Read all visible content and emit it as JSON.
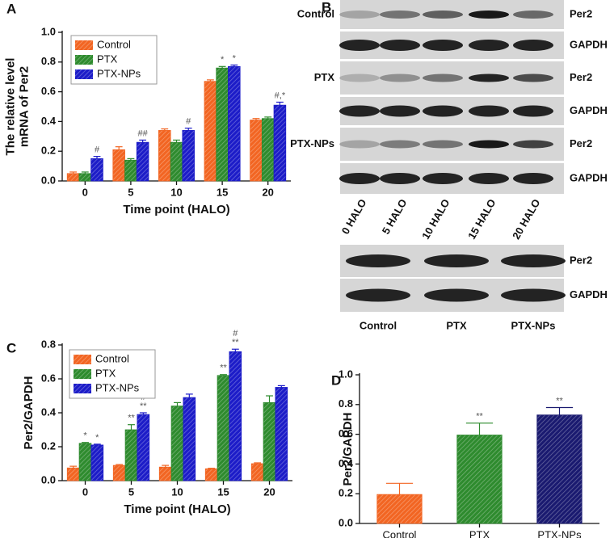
{
  "chart_data": [
    {
      "type": "bar",
      "panel": "A",
      "ylabel": [
        "The relative level",
        "mRNA of Per2"
      ],
      "xlabel": "Time point (HALO)",
      "categories": [
        "0",
        "5",
        "10",
        "15",
        "20"
      ],
      "series": [
        {
          "name": "Control",
          "color": "#f26522",
          "values": [
            0.05,
            0.21,
            0.34,
            0.67,
            0.41
          ],
          "errors": [
            0.01,
            0.02,
            0.01,
            0.01,
            0.01
          ]
        },
        {
          "name": "PTX",
          "color": "#2e8b2e",
          "values": [
            0.05,
            0.14,
            0.26,
            0.76,
            0.42
          ],
          "errors": [
            0.01,
            0.01,
            0.015,
            0.01,
            0.01
          ],
          "annotations": [
            null,
            null,
            null,
            "*",
            null
          ]
        },
        {
          "name": "PTX-NPs",
          "color": "#1c1cc8",
          "values": [
            0.15,
            0.26,
            0.34,
            0.77,
            0.51
          ],
          "errors": [
            0.015,
            0.015,
            0.015,
            0.01,
            0.02
          ],
          "annotations": [
            "#",
            "##",
            "#",
            "*",
            "#,*"
          ]
        }
      ],
      "ylim": [
        0,
        1
      ],
      "yticks": [
        {
          "value": 0,
          "label": "0.0"
        },
        0.2,
        0.4,
        0.6,
        0.8,
        {
          "value": 1,
          "label": "1.0"
        }
      ],
      "legend": "upper left"
    },
    {
      "type": "bar",
      "panel": "C",
      "ylabel": [
        "Per2/GAPDH"
      ],
      "xlabel": "Time point (HALO)",
      "categories": [
        "0",
        "5",
        "10",
        "15",
        "20"
      ],
      "series": [
        {
          "name": "Control",
          "color": "#f26522",
          "values": [
            0.075,
            0.09,
            0.08,
            0.07,
            0.1
          ],
          "errors": [
            0.01,
            0.005,
            0.01,
            0.003,
            0.005
          ]
        },
        {
          "name": "PTX",
          "color": "#2e8b2e",
          "values": [
            0.22,
            0.3,
            0.44,
            0.62,
            0.46
          ],
          "errors": [
            0.005,
            0.03,
            0.02,
            0.005,
            0.04
          ],
          "annotations": [
            "*",
            "**",
            null,
            "**",
            null
          ]
        },
        {
          "name": "PTX-NPs",
          "color": "#1c1cc8",
          "values": [
            0.21,
            0.39,
            0.49,
            0.76,
            0.55
          ],
          "errors": [
            0.005,
            0.01,
            0.02,
            0.015,
            0.01
          ],
          "annotations": [
            "*",
            [
              "#",
              "**"
            ],
            null,
            [
              "#",
              "**"
            ],
            null
          ]
        }
      ],
      "ylim": [
        0,
        0.8
      ],
      "yticks": [
        {
          "value": 0,
          "label": "0.0"
        },
        0.2,
        0.4,
        0.6,
        0.8
      ],
      "legend": "upper left"
    },
    {
      "type": "bar",
      "panel": "D",
      "ylabel": [
        "Per2/GAPDH"
      ],
      "categories": [
        "Control",
        "PTX",
        "PTX-NPs"
      ],
      "values": [
        0.195,
        0.595,
        0.73
      ],
      "errors": [
        0.075,
        0.08,
        0.05
      ],
      "annotations": [
        null,
        "**",
        "**"
      ],
      "colors": [
        "#f26522",
        "#2e8b2e",
        "#1a1a70"
      ],
      "ylim": [
        0,
        1
      ],
      "yticks": [
        {
          "value": 0,
          "label": "0.0"
        },
        0.2,
        0.4,
        0.6,
        0.8,
        {
          "value": 1,
          "label": "1.0"
        }
      ]
    }
  ],
  "blot": {
    "panel": "B",
    "rows": [
      {
        "label": "Control",
        "bands": [
          "Per2",
          "GAPDH"
        ]
      },
      {
        "label": "PTX",
        "bands": [
          "Per2",
          "GAPDH"
        ]
      },
      {
        "label": "PTX-NPs",
        "bands": [
          "Per2",
          "GAPDH"
        ]
      }
    ],
    "lanes": [
      "0 HALO",
      "5 HALO",
      "10 HALO",
      "15 HALO",
      "20 HALO"
    ],
    "bottom": {
      "bands": [
        "Per2",
        "GAPDH"
      ],
      "lanes": [
        "Control",
        "PTX",
        "PTX-NPs"
      ]
    }
  }
}
